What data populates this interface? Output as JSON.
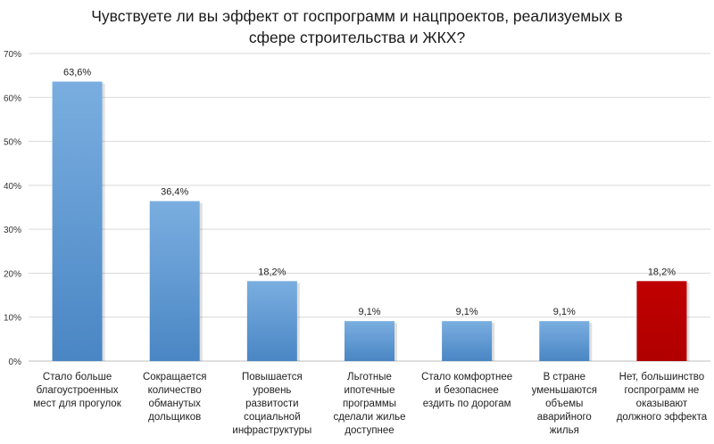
{
  "chart_data": {
    "type": "bar",
    "title": [
      "Чувствуете ли вы эффект от госпрограмм и нацпроектов, реализуемых в",
      "сфере строительства и ЖКХ?"
    ],
    "ylim": [
      0,
      70
    ],
    "yticks": [
      "0%",
      "10%",
      "20%",
      "30%",
      "40%",
      "50%",
      "60%",
      "70%"
    ],
    "grid": true,
    "categories": [
      [
        "Стало больше",
        "благоустроенных",
        "мест для прогулок"
      ],
      [
        "Сокращается",
        "количество",
        "обманутых",
        "дольщиков"
      ],
      [
        "Повышается",
        "уровень",
        "развитости",
        "социальной",
        "инфраструктуры"
      ],
      [
        "Льготные",
        "ипотечные",
        "программы",
        "сделали жилье",
        "доступнее"
      ],
      [
        "Стало комфортнее",
        "и безопаснее",
        "ездить по дорогам"
      ],
      [
        "В стране",
        "уменьшаются",
        "объемы",
        "аварийного",
        "жилья"
      ],
      [
        "Нет, большинство",
        "госпрограмм не",
        "оказывают",
        "должного эффекта"
      ]
    ],
    "values": [
      63.6,
      36.4,
      18.2,
      9.1,
      9.1,
      9.1,
      18.2
    ],
    "labels": [
      "63,6%",
      "36,4%",
      "18,2%",
      "9,1%",
      "9,1%",
      "9,1%",
      "18,2%"
    ],
    "colors": [
      "#5b9bd5",
      "#5b9bd5",
      "#5b9bd5",
      "#5b9bd5",
      "#5b9bd5",
      "#5b9bd5",
      "#c00000"
    ]
  }
}
